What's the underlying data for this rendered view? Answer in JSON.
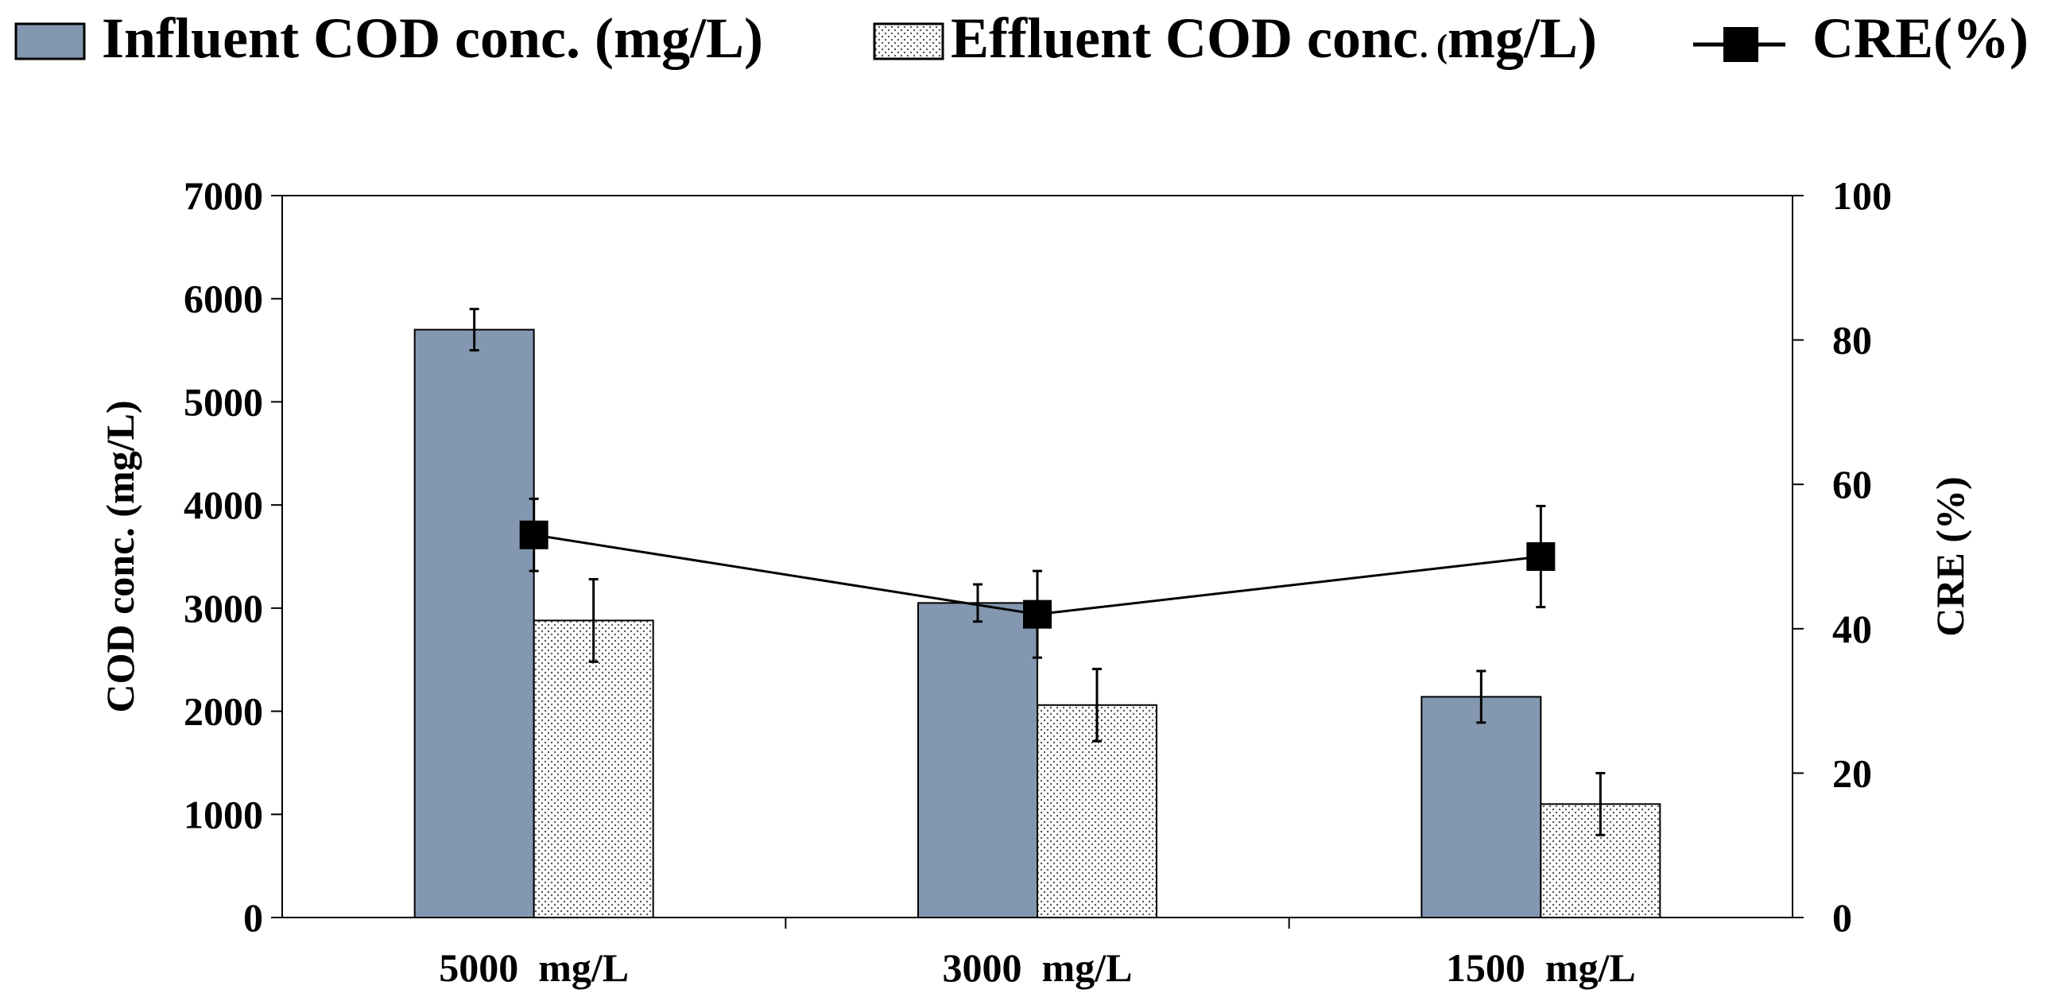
{
  "chart_data": {
    "type": "bar",
    "categories": [
      "5000  mg/L",
      "3000  mg/L",
      "1500  mg/L"
    ],
    "series": [
      {
        "name": "Influent COD conc. (mg/L)",
        "axis": "left",
        "type": "bar",
        "values": [
          5700,
          3050,
          2140
        ],
        "errors": [
          200,
          180,
          250
        ],
        "color": "#8497b0",
        "pattern": "solid"
      },
      {
        "name": "Effluent COD conc. (mg/L)",
        "axis": "right_none",
        "type": "bar",
        "values": [
          2880,
          2060,
          1100
        ],
        "errors": [
          400,
          350,
          300
        ],
        "color": "#ffffff",
        "pattern": "dotted"
      },
      {
        "name": "CRE(%)",
        "axis": "right",
        "type": "line",
        "values": [
          53,
          42,
          50
        ],
        "errors": [
          5,
          6,
          7
        ],
        "color": "#000000",
        "marker": "square"
      }
    ],
    "ylabel": "COD conc. (mg/L)",
    "ylabel_right": "CRE (%)",
    "ylim": [
      0,
      7000
    ],
    "yticks": [
      0,
      1000,
      2000,
      3000,
      4000,
      5000,
      6000,
      7000
    ],
    "ylim_right": [
      0,
      100
    ],
    "yticks_right": [
      0,
      20,
      40,
      60,
      80,
      100
    ],
    "legend_position": "top",
    "grid": false
  },
  "legend": {
    "influent": "Influent COD conc. (mg/L)",
    "effluent_a": "Effluent COD conc",
    "effluent_b": ". (",
    "effluent_c": "mg/L)",
    "cre": "CRE(%)"
  }
}
